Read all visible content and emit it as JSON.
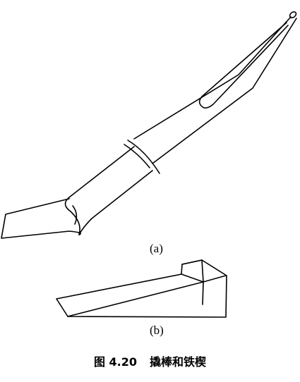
{
  "figure": {
    "label_a": "(a)",
    "label_b": "(b)",
    "caption_number": "图 4.20",
    "caption_title": "撬棒和铁楔"
  }
}
